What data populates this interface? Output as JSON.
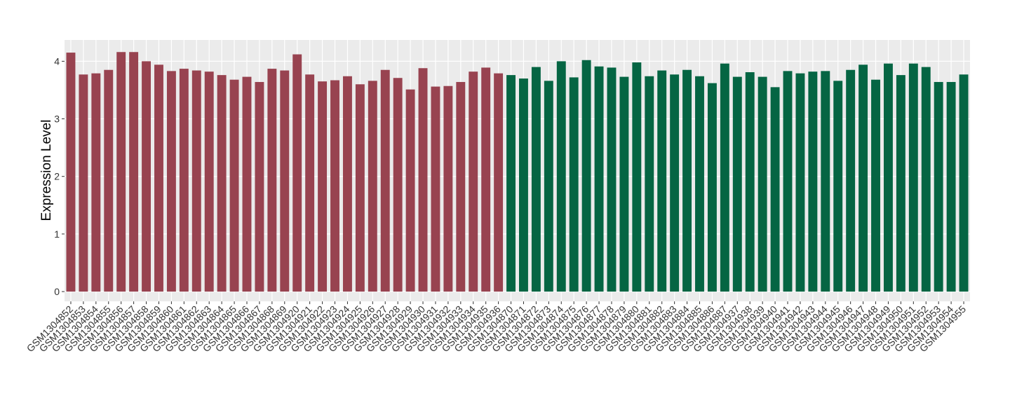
{
  "chart_data": {
    "type": "bar",
    "y_label": "Expression Level",
    "categories": [
      "GSM1304852",
      "GSM1304853",
      "GSM1304854",
      "GSM1304855",
      "GSM1304856",
      "GSM1304857",
      "GSM1304858",
      "GSM1304859",
      "GSM1304860",
      "GSM1304861",
      "GSM1304862",
      "GSM1304863",
      "GSM1304864",
      "GSM1304865",
      "GSM1304866",
      "GSM1304867",
      "GSM1304868",
      "GSM1304869",
      "GSM1304920",
      "GSM1304921",
      "GSM1304922",
      "GSM1304923",
      "GSM1304924",
      "GSM1304925",
      "GSM1304926",
      "GSM1304927",
      "GSM1304928",
      "GSM1304929",
      "GSM1304930",
      "GSM1304931",
      "GSM1304932",
      "GSM1304933",
      "GSM1304934",
      "GSM1304935",
      "GSM1304936",
      "GSM1304870",
      "GSM1304871",
      "GSM1304872",
      "GSM1304873",
      "GSM1304874",
      "GSM1304875",
      "GSM1304876",
      "GSM1304877",
      "GSM1304878",
      "GSM1304879",
      "GSM1304880",
      "GSM1304881",
      "GSM1304882",
      "GSM1304883",
      "GSM1304884",
      "GSM1304885",
      "GSM1304886",
      "GSM1304887",
      "GSM1304937",
      "GSM1304938",
      "GSM1304939",
      "GSM1304940",
      "GSM1304941",
      "GSM1304942",
      "GSM1304943",
      "GSM1304944",
      "GSM1304945",
      "GSM1304946",
      "GSM1304947",
      "GSM1304948",
      "GSM1304949",
      "GSM1304950",
      "GSM1304951",
      "GSM1304952",
      "GSM1304953",
      "GSM1304954",
      "GSM1304955"
    ],
    "series": [
      {
        "color": "#984350",
        "values": [
          4.15,
          3.77,
          3.79,
          3.85,
          4.16,
          4.16,
          4.0,
          3.94,
          3.83,
          3.87,
          3.84,
          3.82,
          3.76,
          3.68,
          3.73,
          3.64,
          3.87,
          3.84,
          4.12,
          3.77,
          3.65,
          3.67,
          3.74,
          3.6,
          3.66,
          3.85,
          3.71,
          3.51,
          3.88,
          3.56,
          3.57,
          3.64,
          3.82,
          3.89,
          3.79,
          null,
          null,
          null,
          null,
          null,
          null,
          null,
          null,
          null,
          null,
          null,
          null,
          null,
          null,
          null,
          null,
          null,
          null,
          null,
          null,
          null,
          null,
          null,
          null,
          null,
          null,
          null,
          null,
          null,
          null,
          null,
          null,
          null,
          null,
          null,
          null,
          null
        ]
      },
      {
        "color": "#056543",
        "values": [
          null,
          null,
          null,
          null,
          null,
          null,
          null,
          null,
          null,
          null,
          null,
          null,
          null,
          null,
          null,
          null,
          null,
          null,
          null,
          null,
          null,
          null,
          null,
          null,
          null,
          null,
          null,
          null,
          null,
          null,
          null,
          null,
          null,
          null,
          null,
          3.76,
          3.7,
          3.9,
          3.66,
          4.0,
          3.72,
          4.02,
          3.91,
          3.89,
          3.73,
          3.98,
          3.74,
          3.84,
          3.77,
          3.85,
          3.74,
          3.62,
          3.96,
          3.73,
          3.81,
          3.73,
          3.55,
          3.83,
          3.79,
          3.82,
          3.83,
          3.66,
          3.85,
          3.94,
          3.68,
          3.96,
          3.76,
          3.96,
          3.9,
          3.64,
          3.64,
          3.77
        ]
      }
    ],
    "ylim": [
      -0.17,
      4.37
    ],
    "yticks": [
      0,
      1,
      2,
      3,
      4
    ],
    "grid": true
  }
}
